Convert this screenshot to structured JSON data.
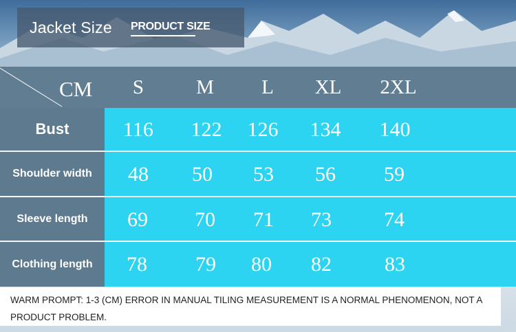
{
  "banner": {
    "title": "Jacket Size",
    "subtitle": "PRODUCT SIZE"
  },
  "table": {
    "unit_label": "CM",
    "sizes": [
      "S",
      "M",
      "L",
      "XL",
      "2XL"
    ],
    "rows": [
      {
        "label": "Bust",
        "values": [
          "116",
          "122",
          "126",
          "134",
          "140"
        ]
      },
      {
        "label": "Shoulder width",
        "values": [
          "48",
          "50",
          "53",
          "56",
          "59"
        ]
      },
      {
        "label": "Sleeve length",
        "values": [
          "69",
          "70",
          "71",
          "73",
          "74"
        ]
      },
      {
        "label": "Clothing length",
        "values": [
          "78",
          "79",
          "80",
          "82",
          "83"
        ]
      }
    ]
  },
  "notice": {
    "text": "WARM PROMPT: 1-3 (CM) ERROR IN MANUAL TILING MEASUREMENT IS A NORMAL PHENOMENON, NOT A PRODUCT PROBLEM."
  },
  "colors": {
    "label_column": "#5d7a8f",
    "value_cells": "#2dd4f2",
    "header_row": "#607d92"
  }
}
